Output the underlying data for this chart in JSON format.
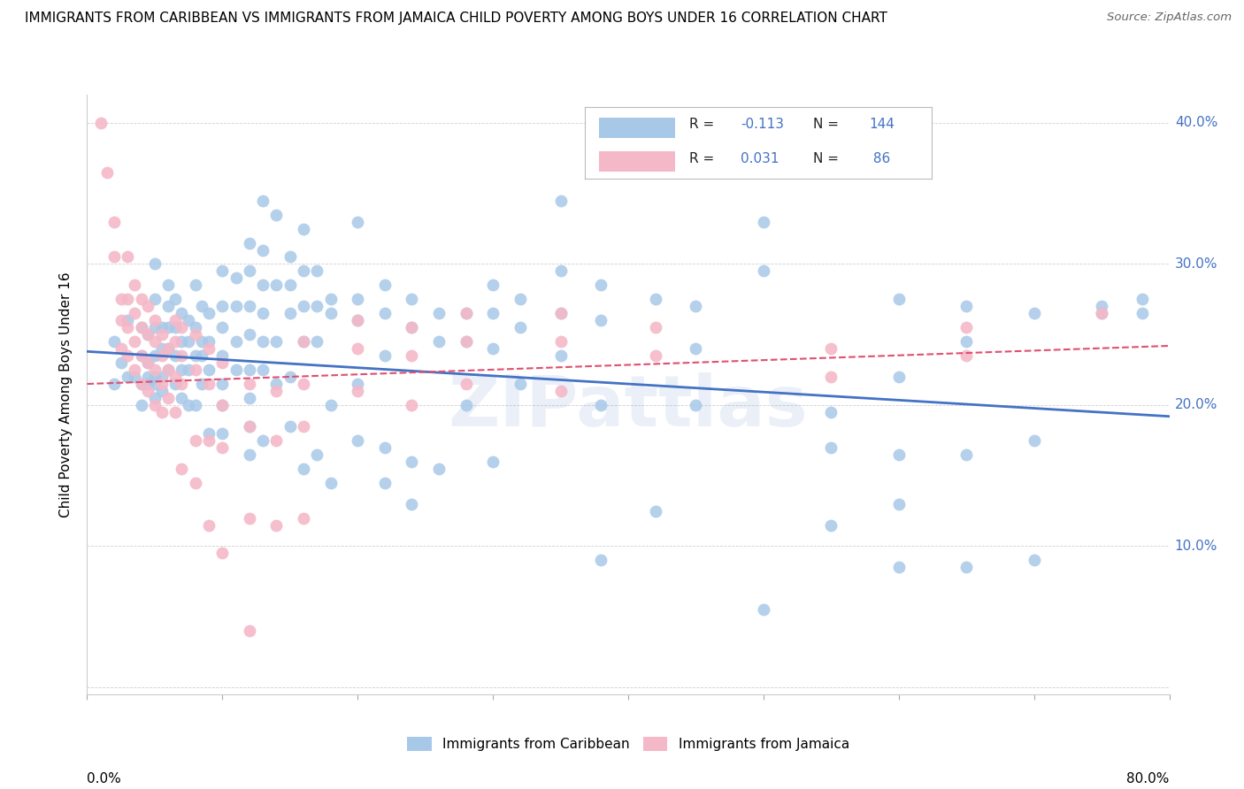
{
  "title": "IMMIGRANTS FROM CARIBBEAN VS IMMIGRANTS FROM JAMAICA CHILD POVERTY AMONG BOYS UNDER 16 CORRELATION CHART",
  "source": "Source: ZipAtlas.com",
  "ylabel": "Child Poverty Among Boys Under 16",
  "color_blue": "#a8c8e8",
  "color_pink": "#f4b8c8",
  "color_line_blue": "#4472c4",
  "color_line_pink": "#e05070",
  "xlim": [
    0.0,
    0.8
  ],
  "ylim": [
    -0.005,
    0.42
  ],
  "blue_scatter": [
    [
      0.02,
      0.245
    ],
    [
      0.02,
      0.215
    ],
    [
      0.025,
      0.23
    ],
    [
      0.03,
      0.26
    ],
    [
      0.03,
      0.22
    ],
    [
      0.035,
      0.22
    ],
    [
      0.04,
      0.255
    ],
    [
      0.04,
      0.235
    ],
    [
      0.04,
      0.215
    ],
    [
      0.04,
      0.2
    ],
    [
      0.045,
      0.25
    ],
    [
      0.045,
      0.23
    ],
    [
      0.045,
      0.215
    ],
    [
      0.045,
      0.22
    ],
    [
      0.05,
      0.3
    ],
    [
      0.05,
      0.275
    ],
    [
      0.05,
      0.255
    ],
    [
      0.05,
      0.235
    ],
    [
      0.05,
      0.215
    ],
    [
      0.05,
      0.22
    ],
    [
      0.05,
      0.205
    ],
    [
      0.055,
      0.255
    ],
    [
      0.055,
      0.24
    ],
    [
      0.055,
      0.22
    ],
    [
      0.055,
      0.21
    ],
    [
      0.06,
      0.285
    ],
    [
      0.06,
      0.27
    ],
    [
      0.06,
      0.255
    ],
    [
      0.06,
      0.24
    ],
    [
      0.06,
      0.225
    ],
    [
      0.065,
      0.275
    ],
    [
      0.065,
      0.255
    ],
    [
      0.065,
      0.235
    ],
    [
      0.065,
      0.215
    ],
    [
      0.07,
      0.265
    ],
    [
      0.07,
      0.245
    ],
    [
      0.07,
      0.225
    ],
    [
      0.07,
      0.205
    ],
    [
      0.075,
      0.26
    ],
    [
      0.075,
      0.245
    ],
    [
      0.075,
      0.225
    ],
    [
      0.075,
      0.2
    ],
    [
      0.08,
      0.285
    ],
    [
      0.08,
      0.255
    ],
    [
      0.08,
      0.235
    ],
    [
      0.08,
      0.2
    ],
    [
      0.085,
      0.27
    ],
    [
      0.085,
      0.245
    ],
    [
      0.085,
      0.235
    ],
    [
      0.085,
      0.215
    ],
    [
      0.09,
      0.265
    ],
    [
      0.09,
      0.245
    ],
    [
      0.09,
      0.225
    ],
    [
      0.09,
      0.18
    ],
    [
      0.1,
      0.295
    ],
    [
      0.1,
      0.27
    ],
    [
      0.1,
      0.255
    ],
    [
      0.1,
      0.235
    ],
    [
      0.1,
      0.215
    ],
    [
      0.1,
      0.2
    ],
    [
      0.1,
      0.18
    ],
    [
      0.11,
      0.29
    ],
    [
      0.11,
      0.27
    ],
    [
      0.11,
      0.245
    ],
    [
      0.11,
      0.225
    ],
    [
      0.12,
      0.315
    ],
    [
      0.12,
      0.295
    ],
    [
      0.12,
      0.27
    ],
    [
      0.12,
      0.25
    ],
    [
      0.12,
      0.225
    ],
    [
      0.12,
      0.205
    ],
    [
      0.12,
      0.185
    ],
    [
      0.12,
      0.165
    ],
    [
      0.13,
      0.345
    ],
    [
      0.13,
      0.31
    ],
    [
      0.13,
      0.285
    ],
    [
      0.13,
      0.265
    ],
    [
      0.13,
      0.245
    ],
    [
      0.13,
      0.225
    ],
    [
      0.13,
      0.175
    ],
    [
      0.14,
      0.335
    ],
    [
      0.14,
      0.285
    ],
    [
      0.14,
      0.245
    ],
    [
      0.14,
      0.215
    ],
    [
      0.15,
      0.305
    ],
    [
      0.15,
      0.285
    ],
    [
      0.15,
      0.265
    ],
    [
      0.15,
      0.22
    ],
    [
      0.15,
      0.185
    ],
    [
      0.16,
      0.325
    ],
    [
      0.16,
      0.295
    ],
    [
      0.16,
      0.27
    ],
    [
      0.16,
      0.245
    ],
    [
      0.16,
      0.155
    ],
    [
      0.17,
      0.295
    ],
    [
      0.17,
      0.27
    ],
    [
      0.17,
      0.245
    ],
    [
      0.17,
      0.165
    ],
    [
      0.18,
      0.275
    ],
    [
      0.18,
      0.265
    ],
    [
      0.18,
      0.2
    ],
    [
      0.18,
      0.145
    ],
    [
      0.2,
      0.33
    ],
    [
      0.2,
      0.275
    ],
    [
      0.2,
      0.26
    ],
    [
      0.2,
      0.215
    ],
    [
      0.2,
      0.175
    ],
    [
      0.22,
      0.285
    ],
    [
      0.22,
      0.265
    ],
    [
      0.22,
      0.235
    ],
    [
      0.22,
      0.17
    ],
    [
      0.22,
      0.145
    ],
    [
      0.24,
      0.275
    ],
    [
      0.24,
      0.255
    ],
    [
      0.24,
      0.16
    ],
    [
      0.24,
      0.13
    ],
    [
      0.26,
      0.265
    ],
    [
      0.26,
      0.245
    ],
    [
      0.26,
      0.155
    ],
    [
      0.28,
      0.265
    ],
    [
      0.28,
      0.245
    ],
    [
      0.28,
      0.2
    ],
    [
      0.3,
      0.285
    ],
    [
      0.3,
      0.265
    ],
    [
      0.3,
      0.24
    ],
    [
      0.3,
      0.16
    ],
    [
      0.32,
      0.275
    ],
    [
      0.32,
      0.255
    ],
    [
      0.32,
      0.215
    ],
    [
      0.35,
      0.345
    ],
    [
      0.35,
      0.295
    ],
    [
      0.35,
      0.265
    ],
    [
      0.35,
      0.235
    ],
    [
      0.38,
      0.285
    ],
    [
      0.38,
      0.26
    ],
    [
      0.38,
      0.2
    ],
    [
      0.38,
      0.09
    ],
    [
      0.42,
      0.275
    ],
    [
      0.42,
      0.125
    ],
    [
      0.45,
      0.27
    ],
    [
      0.45,
      0.24
    ],
    [
      0.45,
      0.2
    ],
    [
      0.5,
      0.33
    ],
    [
      0.5,
      0.295
    ],
    [
      0.5,
      0.055
    ],
    [
      0.55,
      0.195
    ],
    [
      0.55,
      0.17
    ],
    [
      0.55,
      0.115
    ],
    [
      0.6,
      0.275
    ],
    [
      0.6,
      0.22
    ],
    [
      0.6,
      0.165
    ],
    [
      0.6,
      0.13
    ],
    [
      0.6,
      0.085
    ],
    [
      0.65,
      0.27
    ],
    [
      0.65,
      0.245
    ],
    [
      0.65,
      0.165
    ],
    [
      0.65,
      0.085
    ],
    [
      0.7,
      0.265
    ],
    [
      0.7,
      0.175
    ],
    [
      0.7,
      0.09
    ],
    [
      0.75,
      0.27
    ],
    [
      0.75,
      0.265
    ],
    [
      0.78,
      0.275
    ],
    [
      0.78,
      0.265
    ]
  ],
  "pink_scatter": [
    [
      0.01,
      0.4
    ],
    [
      0.015,
      0.365
    ],
    [
      0.02,
      0.33
    ],
    [
      0.02,
      0.305
    ],
    [
      0.025,
      0.275
    ],
    [
      0.025,
      0.26
    ],
    [
      0.025,
      0.24
    ],
    [
      0.03,
      0.305
    ],
    [
      0.03,
      0.275
    ],
    [
      0.03,
      0.255
    ],
    [
      0.03,
      0.235
    ],
    [
      0.035,
      0.285
    ],
    [
      0.035,
      0.265
    ],
    [
      0.035,
      0.245
    ],
    [
      0.035,
      0.225
    ],
    [
      0.04,
      0.275
    ],
    [
      0.04,
      0.255
    ],
    [
      0.04,
      0.235
    ],
    [
      0.04,
      0.215
    ],
    [
      0.045,
      0.27
    ],
    [
      0.045,
      0.25
    ],
    [
      0.045,
      0.23
    ],
    [
      0.045,
      0.21
    ],
    [
      0.05,
      0.26
    ],
    [
      0.05,
      0.245
    ],
    [
      0.05,
      0.225
    ],
    [
      0.05,
      0.2
    ],
    [
      0.055,
      0.25
    ],
    [
      0.055,
      0.235
    ],
    [
      0.055,
      0.215
    ],
    [
      0.055,
      0.195
    ],
    [
      0.06,
      0.24
    ],
    [
      0.06,
      0.225
    ],
    [
      0.06,
      0.205
    ],
    [
      0.065,
      0.26
    ],
    [
      0.065,
      0.245
    ],
    [
      0.065,
      0.22
    ],
    [
      0.065,
      0.195
    ],
    [
      0.07,
      0.255
    ],
    [
      0.07,
      0.235
    ],
    [
      0.07,
      0.215
    ],
    [
      0.07,
      0.155
    ],
    [
      0.08,
      0.25
    ],
    [
      0.08,
      0.225
    ],
    [
      0.08,
      0.175
    ],
    [
      0.08,
      0.145
    ],
    [
      0.09,
      0.24
    ],
    [
      0.09,
      0.215
    ],
    [
      0.09,
      0.175
    ],
    [
      0.09,
      0.115
    ],
    [
      0.1,
      0.23
    ],
    [
      0.1,
      0.2
    ],
    [
      0.1,
      0.17
    ],
    [
      0.1,
      0.095
    ],
    [
      0.12,
      0.215
    ],
    [
      0.12,
      0.185
    ],
    [
      0.12,
      0.12
    ],
    [
      0.12,
      0.04
    ],
    [
      0.14,
      0.21
    ],
    [
      0.14,
      0.175
    ],
    [
      0.14,
      0.115
    ],
    [
      0.16,
      0.245
    ],
    [
      0.16,
      0.215
    ],
    [
      0.16,
      0.185
    ],
    [
      0.16,
      0.12
    ],
    [
      0.2,
      0.26
    ],
    [
      0.2,
      0.24
    ],
    [
      0.2,
      0.21
    ],
    [
      0.24,
      0.255
    ],
    [
      0.24,
      0.235
    ],
    [
      0.24,
      0.2
    ],
    [
      0.28,
      0.265
    ],
    [
      0.28,
      0.245
    ],
    [
      0.28,
      0.215
    ],
    [
      0.35,
      0.265
    ],
    [
      0.35,
      0.245
    ],
    [
      0.35,
      0.21
    ],
    [
      0.42,
      0.255
    ],
    [
      0.42,
      0.235
    ],
    [
      0.55,
      0.24
    ],
    [
      0.55,
      0.22
    ],
    [
      0.65,
      0.255
    ],
    [
      0.65,
      0.235
    ],
    [
      0.75,
      0.265
    ]
  ],
  "blue_line": [
    [
      0.0,
      0.238
    ],
    [
      0.8,
      0.192
    ]
  ],
  "pink_line": [
    [
      0.0,
      0.215
    ],
    [
      0.8,
      0.242
    ]
  ],
  "xticks": [
    0.0,
    0.1,
    0.2,
    0.3,
    0.4,
    0.5,
    0.6,
    0.7,
    0.8
  ],
  "yticks": [
    0.0,
    0.1,
    0.2,
    0.3,
    0.4
  ]
}
